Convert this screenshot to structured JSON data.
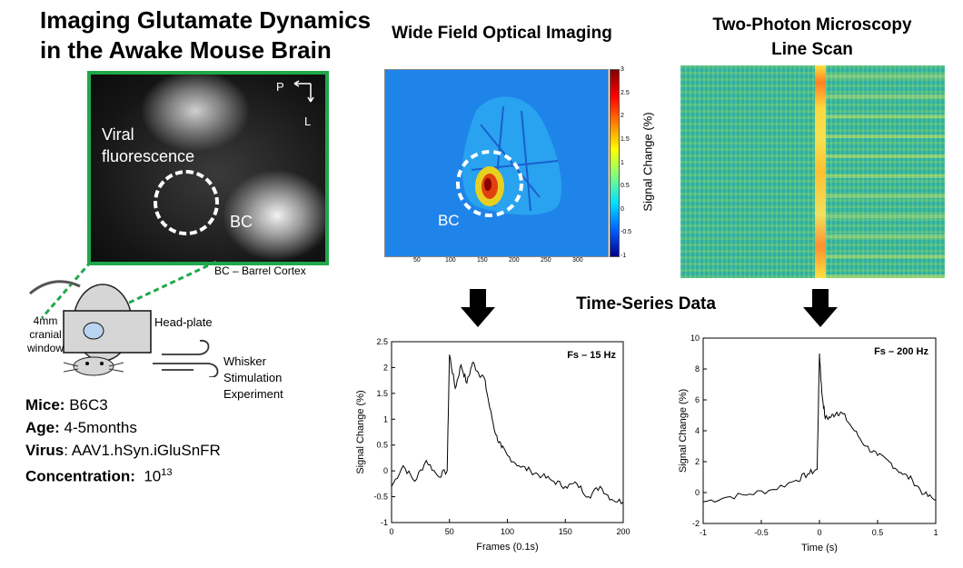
{
  "title": {
    "line1": "Imaging Glutamate Dynamics",
    "line2": "in the Awake Mouse Brain"
  },
  "micrograph": {
    "viral_label_1": "Viral",
    "viral_label_2": "fluorescence",
    "bc_label": "BC",
    "axis_p": "P",
    "axis_l": "L",
    "caption": "BC – Barrel Cortex"
  },
  "mouse": {
    "window_label_1": "4mm",
    "window_label_2": "cranial",
    "window_label_3": "window",
    "headplate_label": "Head-plate",
    "stim_label_1": "Whisker",
    "stim_label_2": "Stimulation",
    "stim_label_3": "Experiment"
  },
  "info": {
    "mice_key": "Mice:",
    "mice_val": " B6C3",
    "age_key": "Age:",
    "age_val": " 4-5months",
    "virus_key": "Virus",
    "virus_val": ": AAV1.hSyn.iGluSnFR",
    "conc_key": "Concentration:",
    "conc_base": "10",
    "conc_exp": "13"
  },
  "widefield": {
    "heading": "Wide Field Optical Imaging",
    "bc_label": "BC",
    "colorbar_label": "Signal Change (%)",
    "colorbar_ticks": [
      "3",
      "2.5",
      "2",
      "1.5",
      "1",
      "0.5",
      "0",
      "-0.5",
      "-1"
    ],
    "x_ticks": [
      "50",
      "100",
      "150",
      "200",
      "250",
      "300"
    ]
  },
  "twophoton": {
    "heading_1": "Two-Photon Microscopy",
    "heading_2": "Line Scan"
  },
  "timeseries_heading": "Time-Series Data",
  "chart_data": [
    {
      "type": "line",
      "annotation": "Fs – 15 Hz",
      "xlabel": "Frames (0.1s)",
      "ylabel": "Signal Change (%)",
      "xlim": [
        0,
        200
      ],
      "ylim": [
        -1,
        2.5
      ],
      "x_ticks": [
        0,
        50,
        100,
        150,
        200
      ],
      "y_ticks": [
        -1,
        -0.5,
        0,
        0.5,
        1,
        1.5,
        2,
        2.5
      ],
      "x": [
        0,
        10,
        20,
        30,
        40,
        48,
        50,
        55,
        60,
        65,
        70,
        75,
        80,
        85,
        90,
        95,
        100,
        110,
        120,
        130,
        140,
        150,
        160,
        170,
        180,
        190,
        200
      ],
      "y": [
        -0.3,
        0.1,
        -0.2,
        0.2,
        -0.1,
        0.0,
        2.25,
        1.6,
        2.05,
        1.7,
        2.1,
        1.9,
        1.8,
        1.2,
        0.7,
        0.45,
        0.3,
        0.1,
        0.0,
        -0.1,
        -0.2,
        -0.3,
        -0.25,
        -0.5,
        -0.3,
        -0.55,
        -0.6
      ]
    },
    {
      "type": "line",
      "annotation": "Fs – 200 Hz",
      "xlabel": "Time (s)",
      "ylabel": "Signal Change (%)",
      "xlim": [
        -1,
        1
      ],
      "ylim": [
        -2,
        10
      ],
      "x_ticks": [
        -1,
        -0.5,
        0,
        0.5,
        1
      ],
      "y_ticks": [
        -2,
        0,
        2,
        4,
        6,
        8,
        10
      ],
      "x": [
        -1,
        -0.8,
        -0.6,
        -0.4,
        -0.2,
        -0.1,
        -0.02,
        0.0,
        0.02,
        0.05,
        0.1,
        0.15,
        0.2,
        0.3,
        0.4,
        0.5,
        0.6,
        0.7,
        0.8,
        0.9,
        1.0
      ],
      "y": [
        -0.6,
        -0.3,
        -0.1,
        0.2,
        0.8,
        1.2,
        1.5,
        9.0,
        6.5,
        4.8,
        4.9,
        5.2,
        5.1,
        4.0,
        3.0,
        2.4,
        2.0,
        1.3,
        0.8,
        -0.1,
        -0.5
      ]
    }
  ]
}
